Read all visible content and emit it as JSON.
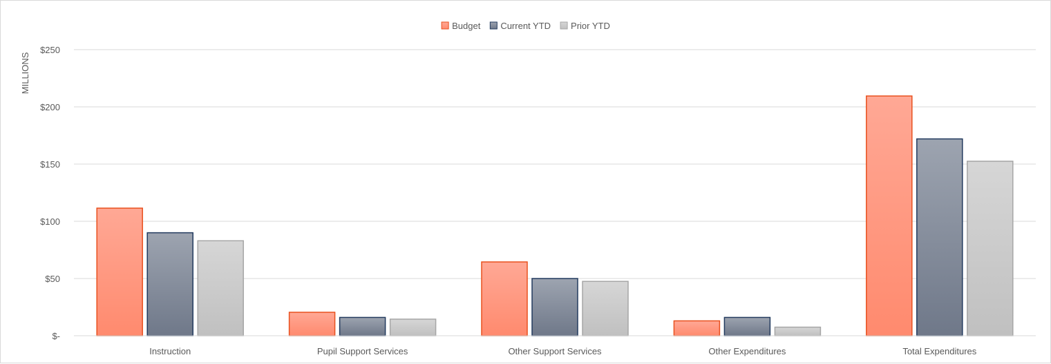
{
  "chart_data": {
    "type": "bar",
    "ylabel": "MILLIONS",
    "ylim": [
      0,
      250
    ],
    "yticks": [
      0,
      50,
      100,
      150,
      200,
      250
    ],
    "ytick_labels": [
      "$-",
      "$50",
      "$100",
      "$150",
      "$200",
      "$250"
    ],
    "grid": true,
    "legend_position": "top-center",
    "categories": [
      "Instruction",
      "Pupil Support Services",
      "Other Support Services",
      "Other Expenditures",
      "Total Expenditures"
    ],
    "series": [
      {
        "name": "Budget",
        "values": [
          111.5,
          20.5,
          64.5,
          13,
          209.5
        ],
        "fill_top": "#ffa895",
        "fill_bottom": "#ff8a6e",
        "stroke": "#e8501e"
      },
      {
        "name": "Current YTD",
        "values": [
          90,
          16,
          50,
          16,
          172
        ],
        "fill_top": "#9da4b0",
        "fill_bottom": "#6f7889",
        "stroke": "#223a5e"
      },
      {
        "name": "Prior YTD",
        "values": [
          83,
          14.5,
          47.5,
          7.5,
          152.5
        ],
        "fill_top": "#d6d6d6",
        "fill_bottom": "#c0c0c0",
        "stroke": "#a6a6a6"
      }
    ]
  }
}
